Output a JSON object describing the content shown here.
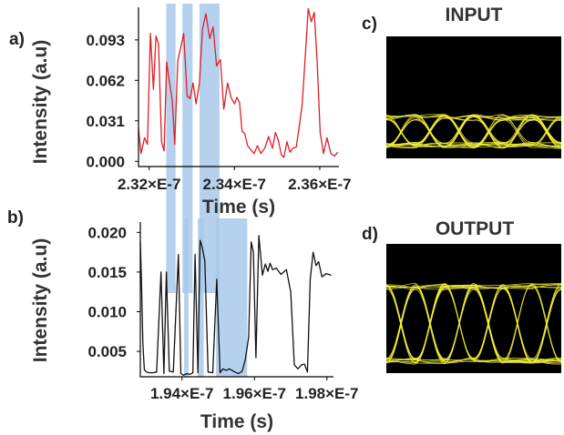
{
  "figure": {
    "panels": {
      "a": {
        "letter": "a)"
      },
      "b": {
        "letter": "b)"
      },
      "c": {
        "letter": "c)",
        "title": "INPUT"
      },
      "d": {
        "letter": "d)",
        "title": "OUTPUT"
      }
    }
  },
  "highlight_color": "#a9c9ea",
  "chart_data": [
    {
      "id": "a",
      "type": "line",
      "xlabel": "Time (s)",
      "ylabel": "Intensity (a.u)",
      "xlim": [
        2.3175e-07,
        2.3645e-07
      ],
      "ylim": [
        -0.004,
        0.118
      ],
      "x_ticks": [
        2.32e-07,
        2.34e-07,
        2.36e-07
      ],
      "x_tick_labels": [
        "2.32×E-7",
        "2.34×E-7",
        "2.36×E-7"
      ],
      "y_ticks": [
        0.0,
        0.031,
        0.062,
        0.093
      ],
      "y_tick_labels": [
        "0.000",
        "0.031",
        "0.062",
        "0.093"
      ],
      "color": "#dd1f26",
      "highlights": [
        [
          2.324e-07,
          2.3262e-07
        ],
        [
          2.3278e-07,
          2.3302e-07
        ],
        [
          2.3318e-07,
          2.3365e-07
        ]
      ],
      "x": [
        2.3175e-07,
        2.3181e-07,
        2.3189e-07,
        2.3196e-07,
        2.3203e-07,
        2.321e-07,
        2.3216e-07,
        2.3222e-07,
        2.3229e-07,
        2.3235e-07,
        2.3241e-07,
        2.3247e-07,
        2.3254e-07,
        2.326e-07,
        2.3267e-07,
        2.3274e-07,
        2.3281e-07,
        2.3289e-07,
        2.3296e-07,
        2.3303e-07,
        2.331e-07,
        2.3318e-07,
        2.3325e-07,
        2.3333e-07,
        2.3342e-07,
        2.335e-07,
        2.3358e-07,
        2.3367e-07,
        2.3375e-07,
        2.3384e-07,
        2.3392e-07,
        2.34e-07,
        2.3406e-07,
        2.3412e-07,
        2.3418e-07,
        2.3424e-07,
        2.3431e-07,
        2.3438e-07,
        2.3446e-07,
        2.3454e-07,
        2.3462e-07,
        2.3471e-07,
        2.348e-07,
        2.3489e-07,
        2.3496e-07,
        2.3503e-07,
        2.351e-07,
        2.3516e-07,
        2.3523e-07,
        2.353e-07,
        2.3537e-07,
        2.3545e-07,
        2.3552e-07,
        2.3559e-07,
        2.3566e-07,
        2.3573e-07,
        2.358e-07,
        2.3587e-07,
        2.3594e-07,
        2.3601e-07,
        2.3609e-07,
        2.3617e-07,
        2.3626e-07,
        2.3635e-07,
        2.3642e-07
      ],
      "y": [
        0.025,
        0.006,
        0.018,
        0.013,
        0.098,
        0.055,
        0.096,
        0.09,
        0.015,
        0.008,
        0.076,
        0.062,
        0.047,
        0.013,
        0.077,
        0.087,
        0.098,
        0.05,
        0.048,
        0.06,
        0.044,
        0.06,
        0.101,
        0.113,
        0.094,
        0.103,
        0.073,
        0.078,
        0.04,
        0.06,
        0.049,
        0.044,
        0.049,
        0.045,
        0.023,
        0.021,
        0.012,
        0.009,
        0.006,
        0.012,
        0.006,
        0.01,
        0.019,
        0.01,
        0.022,
        0.016,
        0.005,
        0.003,
        0.015,
        0.007,
        0.01,
        0.011,
        0.027,
        0.044,
        0.08,
        0.117,
        0.107,
        0.114,
        0.076,
        0.022,
        0.006,
        0.018,
        0.006,
        0.004,
        0.007
      ]
    },
    {
      "id": "b",
      "type": "line",
      "xlabel": "Time (s)",
      "ylabel": "Intensity (a.u)",
      "xlim": [
        1.9285e-07,
        1.9818e-07
      ],
      "ylim": [
        0.0018,
        0.0213
      ],
      "x_ticks": [
        1.94e-07,
        1.96e-07,
        1.98e-07
      ],
      "x_tick_labels": [
        "1.94×E-7",
        "1.96×E-7",
        "1.98×E-7"
      ],
      "y_ticks": [
        0.005,
        0.01,
        0.015,
        0.02
      ],
      "y_tick_labels": [
        "0.005",
        "0.010",
        "0.015",
        "0.020"
      ],
      "color": "#111111",
      "highlights": [
        [
          1.9406e-07,
          1.9418e-07
        ],
        [
          1.9444e-07,
          1.946e-07
        ],
        [
          1.9494e-07,
          1.958e-07
        ]
      ],
      "x": [
        1.9285e-07,
        1.9288e-07,
        1.9292e-07,
        1.9296e-07,
        1.9302e-07,
        1.931e-07,
        1.9319e-07,
        1.933e-07,
        1.9342e-07,
        1.935e-07,
        1.9357e-07,
        1.9365e-07,
        1.9376e-07,
        1.939e-07,
        1.9397e-07,
        1.9404e-07,
        1.9413e-07,
        1.9422e-07,
        1.943e-07,
        1.9436e-07,
        1.9444e-07,
        1.945e-07,
        1.9456e-07,
        1.9463e-07,
        1.9472e-07,
        1.9485e-07,
        1.9496e-07,
        1.9505e-07,
        1.9513e-07,
        1.9522e-07,
        1.9531e-07,
        1.9538e-07,
        1.9546e-07,
        1.9556e-07,
        1.9566e-07,
        1.9575e-07,
        1.9584e-07,
        1.9591e-07,
        1.9597e-07,
        1.9604e-07,
        1.9612e-07,
        1.9622e-07,
        1.963e-07,
        1.9637e-07,
        1.9643e-07,
        1.965e-07,
        1.966e-07,
        1.9673e-07,
        1.9688e-07,
        1.97e-07,
        1.971e-07,
        1.972e-07,
        1.973e-07,
        1.9738e-07,
        1.9746e-07,
        1.9754e-07,
        1.9762e-07,
        1.977e-07,
        1.9777e-07,
        1.9786e-07,
        1.9798e-07,
        1.9812e-07
      ],
      "y": [
        0.0188,
        0.014,
        0.006,
        0.0027,
        0.0024,
        0.0023,
        0.0023,
        0.0024,
        0.015,
        0.0022,
        0.015,
        0.0025,
        0.0024,
        0.0172,
        0.0022,
        0.002,
        0.0022,
        0.0021,
        0.0023,
        0.0172,
        0.0023,
        0.019,
        0.0181,
        0.0164,
        0.0024,
        0.0023,
        0.0141,
        0.0023,
        0.0028,
        0.0026,
        0.0028,
        0.0026,
        0.0024,
        0.0022,
        0.0025,
        0.004,
        0.0068,
        0.0188,
        0.0175,
        0.0042,
        0.0196,
        0.0146,
        0.016,
        0.0151,
        0.0161,
        0.0153,
        0.0155,
        0.0147,
        0.0153,
        0.0125,
        0.0033,
        0.0028,
        0.0033,
        0.0034,
        0.0024,
        0.0141,
        0.0175,
        0.0158,
        0.0163,
        0.0144,
        0.0148,
        0.0146
      ]
    }
  ]
}
